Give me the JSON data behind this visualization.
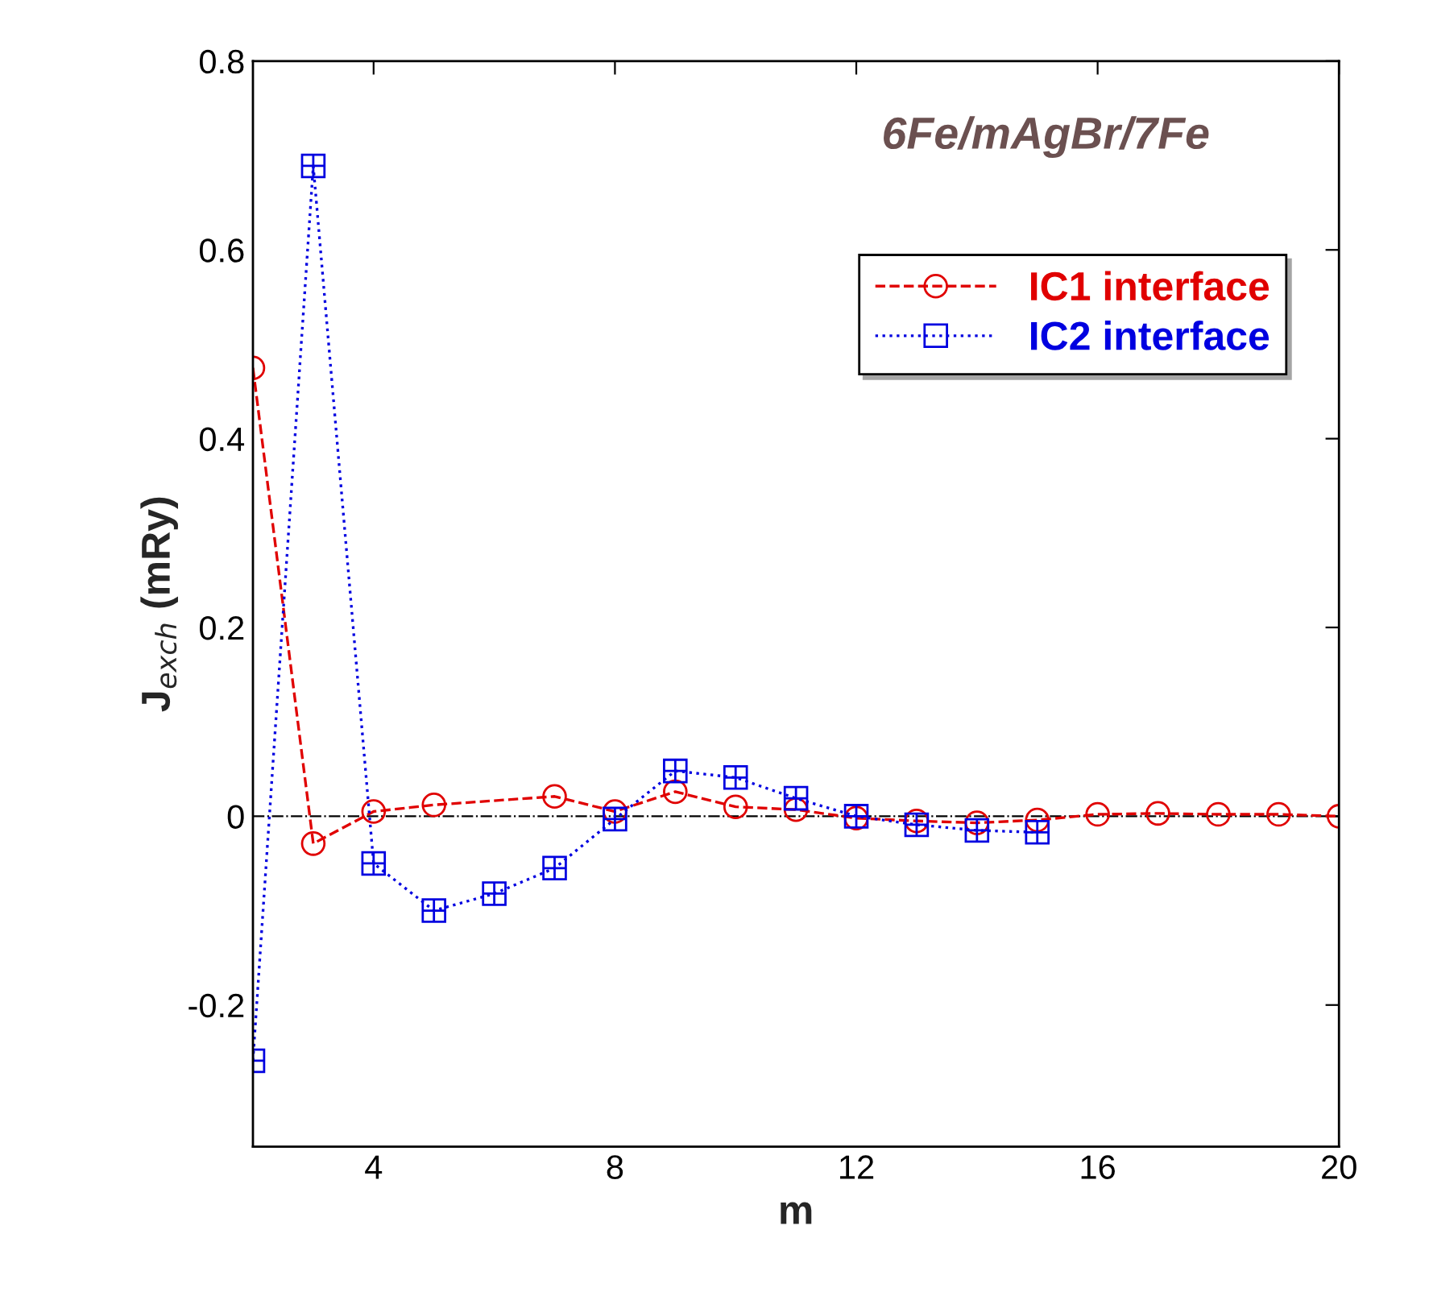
{
  "chart_data": {
    "type": "line",
    "title": "6Fe/mAgBr/7Fe",
    "xlabel": "m",
    "ylabel": "J$_{exch}$ (mRy)",
    "xlim": [
      2,
      20
    ],
    "xticks": [
      4,
      8,
      12,
      16,
      20
    ],
    "ylim": [
      -0.35,
      0.8
    ],
    "yticks": [
      -0.2,
      0,
      0.2,
      0.4,
      0.6,
      0.8
    ],
    "grid": false,
    "legend": "top right",
    "ref_lines": [
      {
        "axis": "y",
        "value": 0,
        "color": "#000000",
        "line_style": "dashdot"
      }
    ],
    "series": [
      {
        "name": "IC1 interface",
        "color": "#e00000",
        "marker": "circle",
        "line_style": "dashed",
        "x": [
          2,
          3,
          4,
          5,
          7,
          8,
          9,
          10,
          11,
          12,
          13,
          14,
          15,
          16,
          17,
          18,
          19,
          20
        ],
        "values": [
          0.475,
          -0.029,
          0.005,
          0.012,
          0.021,
          0.005,
          0.026,
          0.01,
          0.007,
          -0.002,
          -0.005,
          -0.007,
          -0.004,
          0.002,
          0.003,
          0.002,
          0.002,
          0
        ]
      },
      {
        "name": "IC2 interface",
        "color": "#0000e0",
        "marker": "square",
        "line_style": "dotted",
        "x": [
          2,
          3,
          4,
          5,
          6,
          7,
          8,
          9,
          10,
          11,
          12,
          13,
          14,
          15
        ],
        "values": [
          -0.259,
          0.689,
          -0.05,
          -0.1,
          -0.082,
          -0.055,
          -0.003,
          0.048,
          0.041,
          0.019,
          0,
          -0.009,
          -0.015,
          -0.017
        ]
      }
    ]
  }
}
